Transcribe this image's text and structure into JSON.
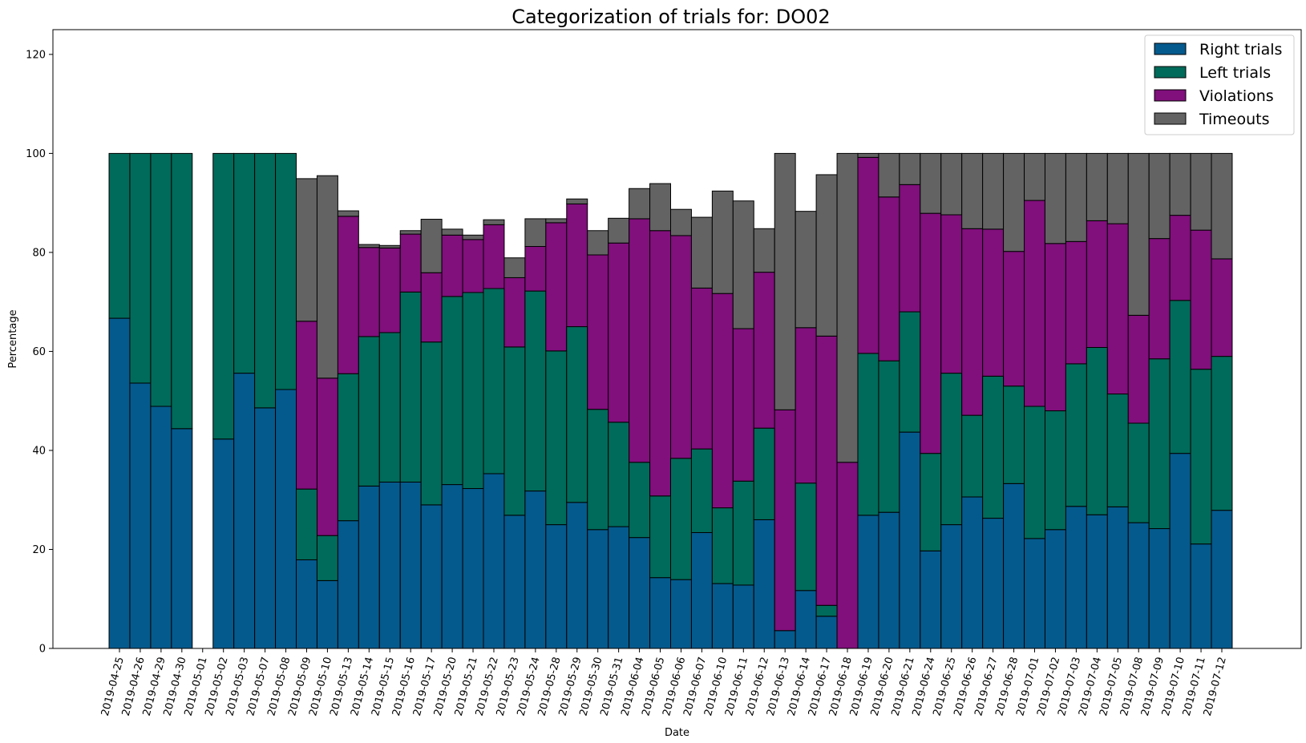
{
  "chart_data": {
    "type": "bar",
    "stacked": true,
    "title": "Categorization of trials for: DO02",
    "xlabel": "Date",
    "ylabel": "Percentage",
    "ylim": [
      0,
      125
    ],
    "yticks": [
      0,
      20,
      40,
      60,
      80,
      100,
      120
    ],
    "legend_position": "top-right",
    "grid": false,
    "categories": [
      "2019-04-25",
      "2019-04-26",
      "2019-04-29",
      "2019-04-30",
      "2019-05-01",
      "2019-05-02",
      "2019-05-03",
      "2019-05-07",
      "2019-05-08",
      "2019-05-09",
      "2019-05-10",
      "2019-05-13",
      "2019-05-14",
      "2019-05-15",
      "2019-05-16",
      "2019-05-17",
      "2019-05-20",
      "2019-05-21",
      "2019-05-22",
      "2019-05-23",
      "2019-05-24",
      "2019-05-28",
      "2019-05-29",
      "2019-05-30",
      "2019-05-31",
      "2019-06-04",
      "2019-06-05",
      "2019-06-06",
      "2019-06-07",
      "2019-06-10",
      "2019-06-11",
      "2019-06-12",
      "2019-06-13",
      "2019-06-14",
      "2019-06-17",
      "2019-06-18",
      "2019-06-19",
      "2019-06-20",
      "2019-06-21",
      "2019-06-24",
      "2019-06-25",
      "2019-06-26",
      "2019-06-27",
      "2019-06-28",
      "2019-07-01",
      "2019-07-02",
      "2019-07-03",
      "2019-07-04",
      "2019-07-05",
      "2019-07-08",
      "2019-07-09",
      "2019-07-10",
      "2019-07-11",
      "2019-07-12"
    ],
    "series": [
      {
        "name": "Right trials",
        "color": "#045a8d",
        "values": [
          66.7,
          53.6,
          48.9,
          44.4,
          0,
          42.3,
          55.6,
          48.6,
          52.3,
          17.9,
          13.7,
          25.8,
          32.8,
          33.6,
          33.6,
          29.0,
          33.1,
          32.3,
          35.3,
          26.9,
          31.8,
          25.0,
          29.5,
          24.0,
          24.6,
          22.4,
          14.3,
          13.9,
          23.4,
          13.1,
          12.8,
          26.0,
          3.6,
          11.7,
          6.5,
          0,
          26.9,
          27.5,
          43.7,
          19.7,
          25.0,
          30.6,
          26.3,
          33.3,
          22.2,
          24.0,
          28.7,
          27.0,
          28.6,
          25.4,
          24.2,
          39.4,
          21.1,
          27.9
        ]
      },
      {
        "name": "Left trials",
        "color": "#006b5a",
        "values": [
          33.3,
          46.4,
          51.1,
          55.6,
          0,
          57.7,
          44.4,
          51.4,
          47.7,
          14.3,
          9.1,
          29.7,
          30.2,
          30.2,
          38.4,
          32.9,
          38.0,
          39.6,
          37.4,
          34.0,
          40.4,
          35.1,
          35.5,
          24.3,
          21.1,
          15.2,
          16.5,
          24.5,
          16.9,
          15.3,
          21.0,
          18.5,
          0,
          21.7,
          2.2,
          0,
          32.7,
          30.6,
          24.3,
          19.7,
          30.6,
          16.5,
          28.7,
          19.7,
          26.7,
          24.0,
          28.8,
          33.8,
          22.8,
          20.1,
          34.3,
          30.9,
          35.3,
          31.1
        ]
      },
      {
        "name": "Violations",
        "color": "#810f7c",
        "values": [
          0,
          0,
          0,
          0,
          0,
          0,
          0,
          0,
          0,
          33.9,
          31.8,
          31.8,
          18.0,
          17.1,
          11.7,
          14.0,
          12.4,
          10.7,
          12.9,
          14.0,
          9.0,
          25.9,
          24.8,
          31.2,
          36.2,
          49.2,
          53.6,
          45.0,
          32.5,
          43.3,
          30.8,
          31.5,
          44.6,
          31.4,
          54.4,
          37.6,
          39.6,
          33.1,
          25.7,
          48.5,
          32.0,
          37.7,
          29.7,
          27.2,
          41.6,
          33.8,
          24.7,
          25.6,
          34.4,
          21.8,
          24.3,
          17.2,
          28.1,
          19.7
        ]
      },
      {
        "name": "Timeouts",
        "color": "#636363",
        "values": [
          0,
          0,
          0,
          0,
          0,
          0,
          0,
          0,
          0,
          28.8,
          40.9,
          1.1,
          0.6,
          0.5,
          0.7,
          10.8,
          1.2,
          0.9,
          1.0,
          4.0,
          5.6,
          0.8,
          1.0,
          4.9,
          5.0,
          6.1,
          9.5,
          5.3,
          14.3,
          20.7,
          25.8,
          8.8,
          51.8,
          23.5,
          32.6,
          62.4,
          0.8,
          8.8,
          6.3,
          12.1,
          12.4,
          15.2,
          15.3,
          19.8,
          9.5,
          18.2,
          17.8,
          13.6,
          14.2,
          32.7,
          17.2,
          12.5,
          15.5,
          21.3
        ]
      }
    ]
  }
}
